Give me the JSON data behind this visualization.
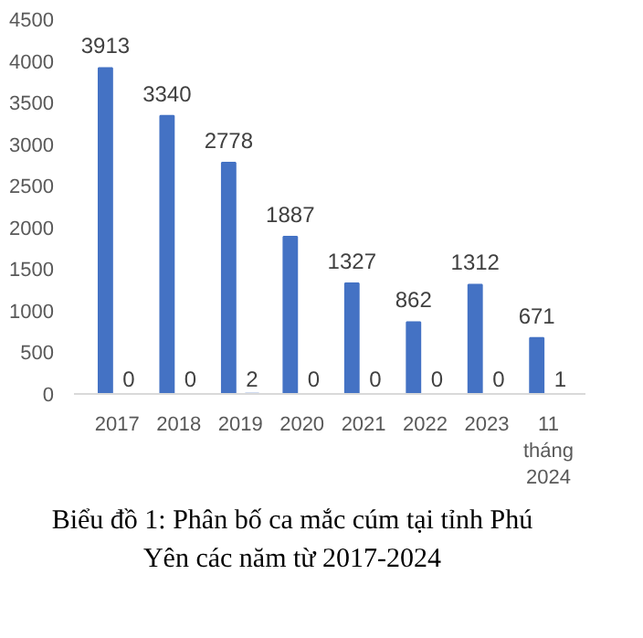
{
  "chart_data": {
    "type": "bar",
    "categories": [
      "2017",
      "2018",
      "2019",
      "2020",
      "2021",
      "2022",
      "2023",
      "11 tháng 2024"
    ],
    "series": [
      {
        "color": "#4472c4",
        "values": [
          3913,
          3340,
          2778,
          1887,
          1327,
          862,
          1312,
          671
        ]
      },
      {
        "color": "#4472c4",
        "values": [
          0,
          0,
          2,
          0,
          0,
          0,
          0,
          1
        ]
      }
    ],
    "ylim": [
      0,
      4500
    ],
    "yticks": [
      0,
      500,
      1000,
      1500,
      2000,
      2500,
      3000,
      3500,
      4000,
      4500
    ],
    "data_labels": true,
    "grid": false,
    "annotations": [
      "Biểu đồ 1: Phân bố ca mắc cúm tại tỉnh Phú Yên các năm từ 2017-2024"
    ]
  }
}
